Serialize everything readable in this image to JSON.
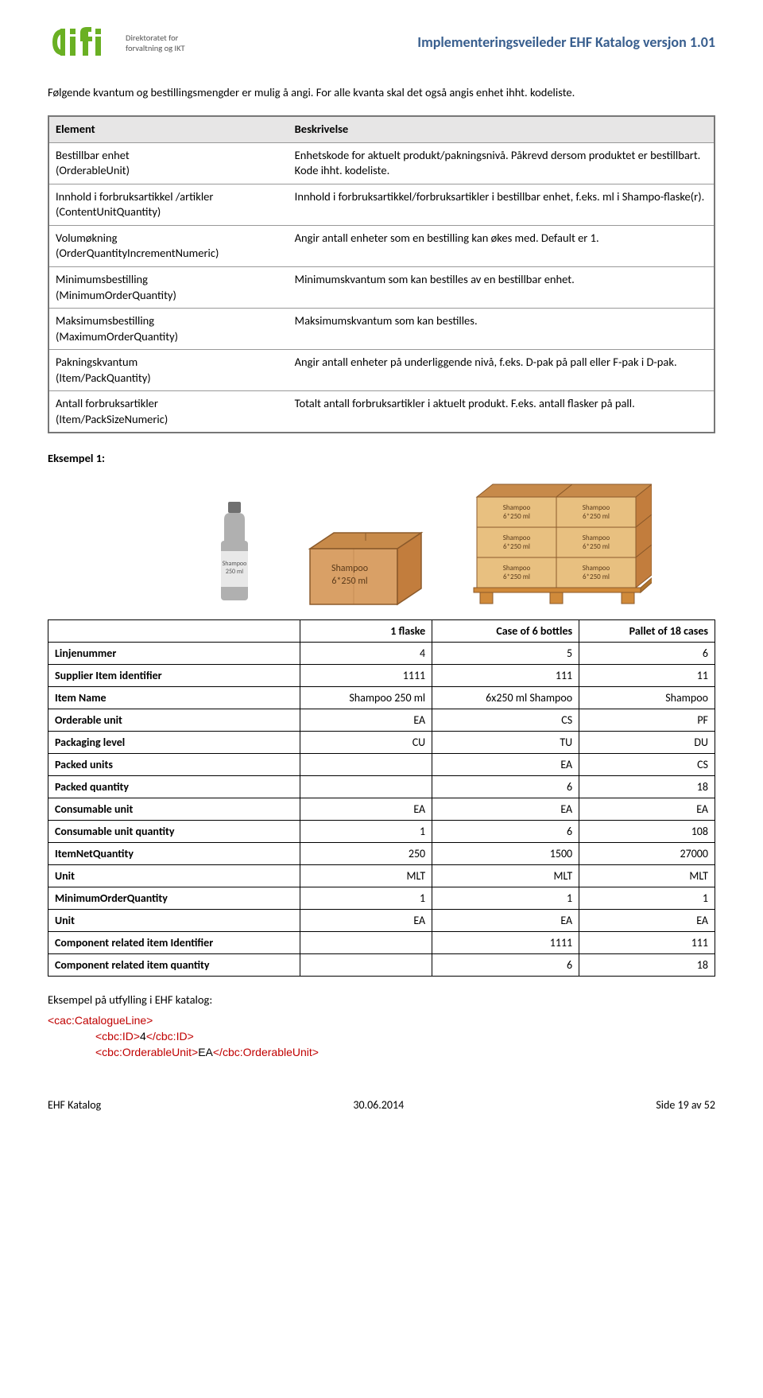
{
  "header": {
    "logo_sub_line1": "Direktoratet for",
    "logo_sub_line2": "forvaltning og IKT",
    "doc_title": "Implementeringsveileder EHF Katalog versjon 1.01"
  },
  "intro": "Følgende kvantum og bestillingsmengder er mulig å angi. For alle kvanta skal det også angis enhet ihht. kodeliste.",
  "table1": {
    "head_left": "Element",
    "head_right": "Beskrivelse",
    "rows": [
      {
        "l": "Bestillbar enhet\n(OrderableUnit)",
        "r": "Enhetskode for aktuelt produkt/pakningsnivå. Påkrevd dersom produktet er bestillbart. Kode ihht. kodeliste."
      },
      {
        "l": "Innhold i forbruksartikkel /artikler\n(ContentUnitQuantity)",
        "r": "Innhold i forbruksartikkel/forbruksartikler i bestillbar enhet, f.eks. ml i Shampo-flaske(r)."
      },
      {
        "l": "Volumøkning\n(OrderQuantityIncrementNumeric)",
        "r": "Angir antall enheter som en bestilling kan økes med. Default er 1."
      },
      {
        "l": "Minimumsbestilling\n(MinimumOrderQuantity)",
        "r": "Minimumskvantum som kan bestilles av en bestillbar enhet."
      },
      {
        "l": "Maksimumsbestilling\n(MaximumOrderQuantity)",
        "r": "Maksimumskvantum som kan bestilles."
      },
      {
        "l": "Pakningskvantum\n(Item/PackQuantity)",
        "r": "Angir antall enheter på underliggende nivå, f.eks. D-pak på pall eller F-pak i D-pak."
      },
      {
        "l": "Antall forbruksartikler\n(Item/PackSizeNumeric)",
        "r": "Totalt antall forbruksartikler i aktuelt produkt. F.eks. antall flasker på pall."
      }
    ]
  },
  "example_label": "Eksempel 1:",
  "illus": {
    "bottle_label": "Shampoo\n250 ml",
    "box_label": "Shampoo\n6*250 ml",
    "pallet_cell": "Shampoo\n6*250 ml"
  },
  "table2": {
    "head": [
      "",
      "1 flaske",
      "Case of 6 bottles",
      "Pallet of 18 cases"
    ],
    "rows": [
      {
        "label": "Linjenummer",
        "v": [
          "4",
          "5",
          "6"
        ]
      },
      {
        "label": "Supplier Item identifier",
        "v": [
          "1111",
          "111",
          "11"
        ]
      },
      {
        "label": "Item Name",
        "v": [
          "Shampoo 250 ml",
          "6x250 ml Shampoo",
          "Shampoo"
        ]
      },
      {
        "label": "Orderable unit",
        "v": [
          "EA",
          "CS",
          "PF"
        ]
      },
      {
        "label": "Packaging level",
        "v": [
          "CU",
          "TU",
          "DU"
        ]
      },
      {
        "label": "Packed units",
        "v": [
          "",
          "EA",
          "CS"
        ]
      },
      {
        "label": "Packed quantity",
        "v": [
          "",
          "6",
          "18"
        ]
      },
      {
        "label": "Consumable unit",
        "v": [
          "EA",
          "EA",
          "EA"
        ]
      },
      {
        "label": "Consumable unit quantity",
        "v": [
          "1",
          "6",
          "108"
        ]
      },
      {
        "label": "ItemNetQuantity",
        "v": [
          "250",
          "1500",
          "27000"
        ]
      },
      {
        "label": "Unit",
        "v": [
          "MLT",
          "MLT",
          "MLT"
        ]
      },
      {
        "label": "MinimumOrderQuantity",
        "v": [
          "1",
          "1",
          "1"
        ]
      },
      {
        "label": "Unit",
        "v": [
          "EA",
          "EA",
          "EA"
        ]
      },
      {
        "label": "Component related item Identifier",
        "v": [
          "",
          "1111",
          "111"
        ]
      },
      {
        "label": "Component related item quantity",
        "v": [
          "",
          "6",
          "18"
        ]
      }
    ]
  },
  "example2_label": "Eksempel på utfylling i EHF katalog:",
  "xml": {
    "line1": {
      "tag": "<cac:CatalogueLine>"
    },
    "line2": {
      "open": "<cbc:ID>",
      "val": "4",
      "close": "</cbc:ID>"
    },
    "line3": {
      "open": "<cbc:OrderableUnit>",
      "val": "EA",
      "close": "</cbc:OrderableUnit>"
    }
  },
  "footer": {
    "left": "EHF Katalog",
    "center": "30.06.2014",
    "right": "Side 19 av 52"
  },
  "colors": {
    "brand_green": "#6ab023",
    "nav_blue": "#3b5e8c",
    "box_fill": "#d9a066",
    "box_stroke": "#8b5a2b",
    "pallet_base": "#d08a3a",
    "bottle_body": "#b0b0b0",
    "bottle_cap": "#707070"
  }
}
